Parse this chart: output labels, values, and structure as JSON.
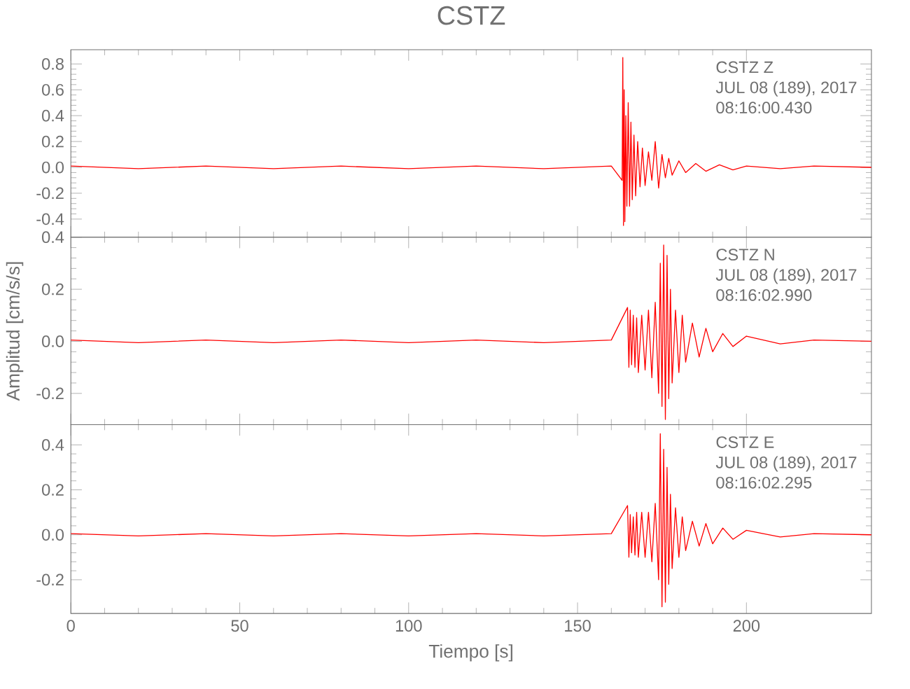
{
  "chart_data": [
    {
      "type": "line",
      "title": "CSTZ",
      "color": "#ff0000",
      "tick_labels": "y",
      "x": [
        0,
        20,
        40,
        60,
        80,
        100,
        120,
        140,
        160,
        163.2,
        163.4,
        163.6,
        163.8,
        164.0,
        164.3,
        164.6,
        165.0,
        165.4,
        165.8,
        166.2,
        166.7,
        167.2,
        167.8,
        168.5,
        169.2,
        170,
        171,
        172,
        173,
        174,
        175,
        176,
        177,
        178,
        180,
        182,
        185,
        188,
        192,
        196,
        200,
        210,
        220,
        237
      ],
      "values": [
        0.01,
        -0.01,
        0.01,
        -0.01,
        0.01,
        -0.01,
        0.01,
        -0.01,
        0.01,
        -0.1,
        0.85,
        -0.45,
        0.6,
        -0.42,
        0.4,
        -0.3,
        0.5,
        -0.3,
        0.35,
        -0.25,
        0.25,
        -0.22,
        0.2,
        -0.15,
        0.15,
        -0.14,
        0.12,
        -0.1,
        0.2,
        -0.16,
        0.1,
        -0.08,
        0.07,
        -0.06,
        0.05,
        -0.04,
        0.03,
        -0.03,
        0.02,
        -0.02,
        0.01,
        -0.01,
        0.01,
        0
      ],
      "xlim": [
        0,
        237
      ],
      "xticks": [
        0,
        50,
        100,
        150,
        200
      ],
      "ylim": [
        -0.54,
        0.91
      ],
      "yticks": [
        {
          "value": -0.4,
          "label": "-0.4"
        },
        {
          "value": -0.2,
          "label": "-0.2"
        },
        {
          "value": 0,
          "label": "0.0"
        },
        0.2,
        0.4,
        0.6,
        0.8
      ],
      "annotations": [
        "CSTZ   Z",
        "JUL 08 (189), 2017",
        "08:16:00.430"
      ]
    },
    {
      "type": "line",
      "ylabel": "Amplitud [cm/s/s]",
      "color": "#ff0000",
      "tick_labels": "y",
      "x": [
        0,
        20,
        40,
        60,
        80,
        100,
        120,
        140,
        160,
        164.8,
        165.2,
        165.6,
        166,
        166.5,
        167,
        167.5,
        168,
        169,
        170,
        171,
        172,
        173,
        174,
        174.5,
        175,
        175.5,
        176,
        176.5,
        177,
        177.5,
        178,
        179,
        180,
        181,
        182,
        184,
        186,
        188,
        190,
        193,
        196,
        200,
        210,
        220,
        237
      ],
      "values": [
        0.005,
        -0.005,
        0.005,
        -0.005,
        0.005,
        -0.005,
        0.005,
        -0.005,
        0.005,
        0.13,
        -0.1,
        0.12,
        -0.09,
        0.1,
        -0.1,
        0.09,
        -0.12,
        0.1,
        -0.11,
        0.12,
        -0.14,
        0.15,
        -0.2,
        0.3,
        -0.25,
        0.37,
        -0.3,
        0.33,
        -0.22,
        0.2,
        -0.16,
        0.12,
        -0.12,
        0.1,
        -0.08,
        0.07,
        -0.06,
        0.05,
        -0.04,
        0.03,
        -0.02,
        0.02,
        -0.01,
        0.005,
        0
      ],
      "xlim": [
        0,
        237
      ],
      "xticks": [
        0,
        50,
        100,
        150,
        200
      ],
      "ylim": [
        -0.32,
        0.4
      ],
      "yticks": [
        {
          "value": -0.2,
          "label": "-0.2"
        },
        {
          "value": 0,
          "label": "0.0"
        },
        0.2,
        0.4
      ],
      "annotations": [
        "CSTZ   N",
        "JUL 08 (189), 2017",
        "08:16:02.990"
      ]
    },
    {
      "type": "line",
      "xlabel": "Tiempo [s]",
      "color": "#ff0000",
      "x": [
        0,
        20,
        40,
        60,
        80,
        100,
        120,
        140,
        160,
        164.8,
        165.2,
        165.6,
        166,
        166.5,
        167,
        167.5,
        168,
        169,
        170,
        171,
        172,
        173,
        174,
        174.5,
        175,
        175.5,
        176,
        176.5,
        177,
        177.5,
        178,
        179,
        180,
        181,
        182,
        184,
        186,
        188,
        190,
        193,
        196,
        200,
        210,
        220,
        237
      ],
      "values": [
        0.005,
        -0.005,
        0.005,
        -0.005,
        0.005,
        -0.005,
        0.005,
        -0.005,
        0.005,
        0.13,
        -0.1,
        0.09,
        -0.08,
        0.08,
        -0.09,
        0.1,
        -0.1,
        0.1,
        -0.1,
        0.1,
        -0.12,
        0.14,
        -0.2,
        0.45,
        -0.32,
        0.38,
        -0.3,
        0.3,
        -0.22,
        0.18,
        -0.15,
        0.12,
        -0.1,
        0.08,
        -0.07,
        0.06,
        -0.05,
        0.05,
        -0.04,
        0.03,
        -0.02,
        0.02,
        -0.01,
        0.005,
        0
      ],
      "xlim": [
        0,
        237
      ],
      "xticks": [
        0,
        50,
        100,
        150,
        200
      ],
      "ylim": [
        -0.35,
        0.49
      ],
      "yticks": [
        {
          "value": -0.2,
          "label": "-0.2"
        },
        {
          "value": 0,
          "label": "0.0"
        },
        0.2,
        0.4
      ],
      "annotations": [
        "CSTZ   E",
        "JUL 08 (189), 2017",
        "08:16:02.295"
      ]
    }
  ]
}
